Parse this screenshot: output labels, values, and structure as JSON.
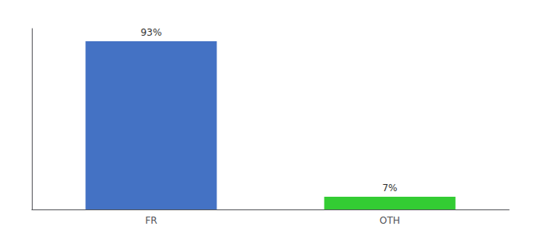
{
  "chart_data": {
    "type": "bar",
    "categories": [
      "FR",
      "OTH"
    ],
    "values": [
      93,
      7
    ],
    "value_labels": [
      "93%",
      "7%"
    ],
    "colors": [
      "#4472c4",
      "#33cc33"
    ],
    "ylim": [
      0,
      100
    ],
    "grid": false,
    "data_labels": true,
    "tick_labels": "x"
  }
}
